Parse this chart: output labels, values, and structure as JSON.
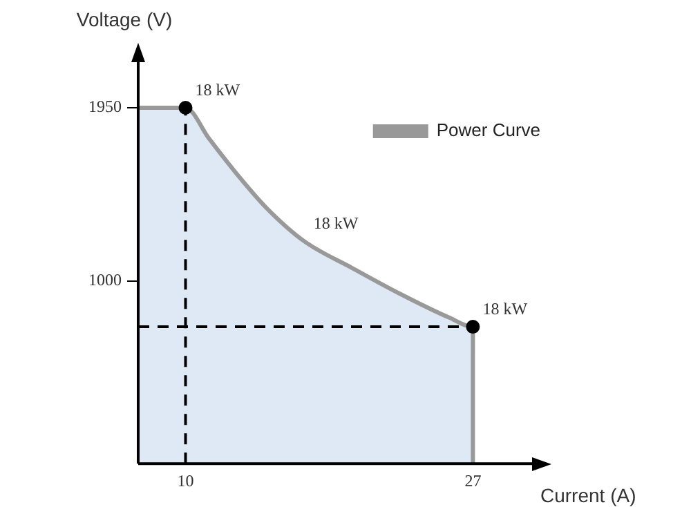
{
  "chart_data": {
    "type": "area",
    "xlabel": "Current (A)",
    "ylabel": "Voltage (V)",
    "series": [
      {
        "name": "Power Curve",
        "color": "#999999",
        "x": [
          7.2,
          10,
          11.4,
          13.1,
          14.8,
          17,
          19.9,
          22.7,
          25.6,
          27,
          27
        ],
        "values": [
          1950,
          1950,
          1780,
          1580,
          1400,
          1220,
          1070,
          930,
          800,
          750,
          0
        ]
      },
      {
        "type": "scatter",
        "color": "#000000",
        "x": [
          10,
          27
        ],
        "values": [
          1950,
          750
        ]
      }
    ],
    "xlim": [
      7.2,
      30.5
    ],
    "xticks": [
      10,
      27
    ],
    "ylim": [
      0,
      2200
    ],
    "yticks": [
      1000,
      1950
    ],
    "ref_lines": [
      {
        "axis": "x",
        "value": 10,
        "line_style": "dashed",
        "color": "#000000"
      },
      {
        "axis": "y",
        "value": 750,
        "line_style": "dashed",
        "color": "#000000"
      }
    ],
    "annotations": [
      {
        "text": "18 kW",
        "x": 10,
        "y": 1950
      },
      {
        "text": "18 kW",
        "x": 17,
        "y": 1220
      },
      {
        "text": "18 kW",
        "x": 27,
        "y": 750
      }
    ],
    "legend": "top right",
    "grid": false
  }
}
